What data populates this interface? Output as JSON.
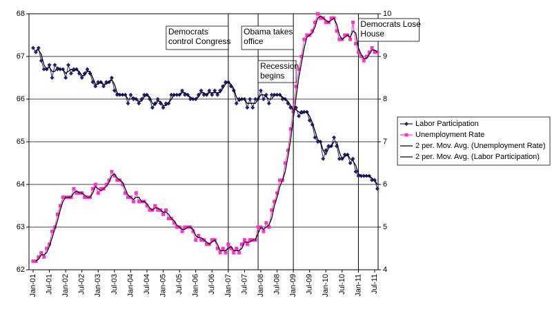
{
  "chart_data": {
    "type": "line",
    "categories": [
      "Jan-01",
      null,
      null,
      null,
      null,
      null,
      "Jul-01",
      null,
      null,
      null,
      null,
      null,
      "Jan-02",
      null,
      null,
      null,
      null,
      null,
      "Jul-02",
      null,
      null,
      null,
      null,
      null,
      "Jan-03",
      null,
      null,
      null,
      null,
      null,
      "Jul-03",
      null,
      null,
      null,
      null,
      null,
      "Jan-04",
      null,
      null,
      null,
      null,
      null,
      "Jul-04",
      null,
      null,
      null,
      null,
      null,
      "Jan-05",
      null,
      null,
      null,
      null,
      null,
      "Jul-05",
      null,
      null,
      null,
      null,
      null,
      "Jan-06",
      null,
      null,
      null,
      null,
      null,
      "Jul-06",
      null,
      null,
      null,
      null,
      null,
      "Jan-07",
      null,
      null,
      null,
      null,
      null,
      "Jul-07",
      null,
      null,
      null,
      null,
      null,
      "Jan-08",
      null,
      null,
      null,
      null,
      null,
      "Jul-08",
      null,
      null,
      null,
      null,
      null,
      "Jan-09",
      null,
      null,
      null,
      null,
      null,
      "Jul-09",
      null,
      null,
      null,
      null,
      null,
      "Jan-10",
      null,
      null,
      null,
      null,
      null,
      "Jul-10",
      null,
      null,
      null,
      null,
      null,
      "Jan-11",
      null,
      null,
      null,
      null,
      null,
      "Jul-11",
      null
    ],
    "series": [
      {
        "name": "Labor Participation",
        "color": "#1f1f7a",
        "marker": "diamond",
        "axis": "y",
        "values": [
          67.2,
          67.1,
          67.2,
          66.9,
          66.7,
          66.7,
          66.8,
          66.5,
          66.8,
          66.7,
          66.7,
          66.7,
          66.5,
          66.8,
          66.6,
          66.7,
          66.7,
          66.6,
          66.5,
          66.6,
          66.7,
          66.6,
          66.4,
          66.3,
          66.4,
          66.4,
          66.3,
          66.4,
          66.4,
          66.5,
          66.2,
          66.1,
          66.1,
          66.1,
          66.1,
          65.9,
          66.1,
          66.0,
          66.0,
          65.9,
          66.0,
          66.1,
          66.1,
          66.0,
          65.8,
          65.9,
          66.0,
          65.9,
          65.8,
          65.9,
          65.9,
          66.1,
          66.1,
          66.1,
          66.1,
          66.2,
          66.1,
          66.1,
          66.0,
          66.0,
          66.0,
          66.1,
          66.2,
          66.1,
          66.1,
          66.2,
          66.1,
          66.2,
          66.1,
          66.2,
          66.3,
          66.4,
          66.4,
          66.3,
          66.2,
          65.9,
          66.0,
          66.0,
          66.0,
          65.8,
          66.0,
          65.8,
          66.0,
          66.0,
          66.2,
          66.0,
          66.1,
          65.9,
          66.1,
          66.1,
          66.1,
          66.1,
          66.0,
          66.0,
          65.9,
          65.8,
          65.7,
          65.8,
          65.6,
          65.7,
          65.7,
          65.7,
          65.5,
          65.4,
          65.1,
          65.0,
          65.0,
          64.6,
          64.8,
          64.9,
          64.9,
          65.1,
          64.9,
          64.6,
          64.6,
          64.7,
          64.7,
          64.5,
          64.6,
          64.3,
          64.2,
          64.2,
          64.2,
          64.2,
          64.2,
          64.1,
          64.1,
          63.9
        ]
      },
      {
        "name": "Unemployment Rate",
        "color": "#ff33cc",
        "marker": "square",
        "axis": "y2",
        "values": [
          4.2,
          4.2,
          4.3,
          4.4,
          4.3,
          4.5,
          4.6,
          4.9,
          5.0,
          5.3,
          5.5,
          5.7,
          5.7,
          5.7,
          5.7,
          5.9,
          5.8,
          5.8,
          5.8,
          5.7,
          5.7,
          5.7,
          5.9,
          6.0,
          5.8,
          5.9,
          5.9,
          6.0,
          6.1,
          6.3,
          6.2,
          6.1,
          6.1,
          6.0,
          5.8,
          5.7,
          5.7,
          5.6,
          5.8,
          5.6,
          5.6,
          5.6,
          5.5,
          5.4,
          5.4,
          5.5,
          5.4,
          5.4,
          5.3,
          5.4,
          5.2,
          5.2,
          5.1,
          5.0,
          5.0,
          4.9,
          5.0,
          5.0,
          5.0,
          4.9,
          4.7,
          4.8,
          4.7,
          4.7,
          4.6,
          4.6,
          4.7,
          4.7,
          4.5,
          4.4,
          4.5,
          4.4,
          4.6,
          4.5,
          4.4,
          4.5,
          4.4,
          4.6,
          4.7,
          4.6,
          4.7,
          4.7,
          4.7,
          5.0,
          5.0,
          4.9,
          5.1,
          5.0,
          5.4,
          5.6,
          5.8,
          6.1,
          6.1,
          6.5,
          6.8,
          7.3,
          7.8,
          8.3,
          8.7,
          9.0,
          9.4,
          9.5,
          9.5,
          9.6,
          9.8,
          10.0,
          9.9,
          9.9,
          9.8,
          9.8,
          9.9,
          9.9,
          9.6,
          9.4,
          9.4,
          9.5,
          9.5,
          9.4,
          9.8,
          9.3,
          9.1,
          9.0,
          8.9,
          9.0,
          9.1,
          9.2,
          9.1,
          9.1
        ]
      },
      {
        "name": "2 per. Mov. Avg. (Unemployment Rate)",
        "color": "#000000",
        "axis": "y2",
        "values": [
          null,
          4.2,
          4.25,
          4.35,
          4.35,
          4.4,
          4.55,
          4.75,
          4.95,
          5.15,
          5.4,
          5.6,
          5.7,
          5.7,
          5.7,
          5.8,
          5.85,
          5.8,
          5.8,
          5.75,
          5.7,
          5.7,
          5.8,
          5.95,
          5.9,
          5.85,
          5.9,
          5.95,
          6.05,
          6.2,
          6.25,
          6.15,
          6.1,
          6.05,
          5.9,
          5.75,
          5.7,
          5.65,
          5.7,
          5.7,
          5.6,
          5.6,
          5.55,
          5.45,
          5.4,
          5.45,
          5.45,
          5.4,
          5.35,
          5.35,
          5.3,
          5.2,
          5.15,
          5.05,
          5.0,
          4.95,
          4.95,
          5.0,
          5.0,
          4.95,
          4.8,
          4.75,
          4.75,
          4.7,
          4.65,
          4.6,
          4.65,
          4.7,
          4.6,
          4.45,
          4.45,
          4.45,
          4.5,
          4.55,
          4.45,
          4.45,
          4.45,
          4.5,
          4.65,
          4.65,
          4.65,
          4.7,
          4.7,
          4.85,
          5.0,
          4.95,
          5.0,
          5.05,
          5.2,
          5.5,
          5.7,
          5.95,
          6.1,
          6.3,
          6.65,
          7.05,
          7.55,
          8.05,
          8.5,
          8.85,
          9.2,
          9.45,
          9.5,
          9.55,
          9.7,
          9.9,
          9.95,
          9.9,
          9.85,
          9.8,
          9.85,
          9.9,
          9.75,
          9.5,
          9.4,
          9.45,
          9.5,
          9.45,
          9.6,
          9.55,
          9.2,
          9.05,
          8.95,
          8.95,
          9.05,
          9.15,
          9.15,
          9.1
        ]
      },
      {
        "name": "2 per. Mov. Avg. (Labor Participation)",
        "color": "#000000",
        "axis": "y",
        "values": [
          null,
          67.15,
          67.15,
          67.05,
          66.8,
          66.7,
          66.75,
          66.65,
          66.65,
          66.75,
          66.7,
          66.7,
          66.6,
          66.65,
          66.7,
          66.65,
          66.7,
          66.65,
          66.55,
          66.55,
          66.65,
          66.65,
          66.5,
          66.35,
          66.35,
          66.4,
          66.35,
          66.35,
          66.4,
          66.45,
          66.35,
          66.15,
          66.1,
          66.1,
          66.1,
          66.0,
          66.0,
          66.05,
          66.0,
          65.95,
          65.95,
          66.05,
          66.1,
          66.05,
          65.9,
          65.85,
          65.95,
          65.95,
          65.85,
          65.85,
          65.9,
          66.0,
          66.1,
          66.1,
          66.1,
          66.15,
          66.15,
          66.1,
          66.05,
          66.0,
          66.0,
          66.05,
          66.15,
          66.15,
          66.1,
          66.15,
          66.15,
          66.15,
          66.15,
          66.15,
          66.25,
          66.35,
          66.4,
          66.35,
          66.25,
          66.05,
          65.95,
          66.0,
          66.0,
          65.9,
          65.9,
          65.9,
          65.9,
          66.0,
          66.1,
          66.1,
          66.05,
          66.0,
          66.0,
          66.1,
          66.1,
          66.1,
          66.05,
          66.0,
          65.95,
          65.85,
          65.75,
          65.75,
          65.7,
          65.65,
          65.7,
          65.7,
          65.6,
          65.45,
          65.25,
          65.05,
          65.0,
          64.8,
          64.7,
          64.85,
          64.9,
          65.0,
          65.0,
          64.75,
          64.6,
          64.65,
          64.7,
          64.6,
          64.55,
          64.45,
          64.25,
          64.2,
          64.2,
          64.2,
          64.2,
          64.15,
          64.1,
          64.0
        ]
      }
    ],
    "ylim": [
      62,
      68
    ],
    "yticks": [
      62,
      63,
      64,
      65,
      66,
      67,
      68
    ],
    "y2lim": [
      4,
      10
    ],
    "y2ticks": [
      4,
      5,
      6,
      7,
      8,
      9,
      10
    ],
    "grid": true,
    "legend": "right",
    "annotations": [
      {
        "x_index": 72,
        "lines": [
          "Democrats",
          "control Congress"
        ]
      },
      {
        "x_index": 83,
        "lines": [
          "Recession",
          "begins"
        ]
      },
      {
        "x_index": 96,
        "lines": [
          "Obama takes",
          "office"
        ]
      },
      {
        "x_index": 120,
        "lines": [
          "Democrats Lose",
          "House"
        ]
      }
    ]
  }
}
